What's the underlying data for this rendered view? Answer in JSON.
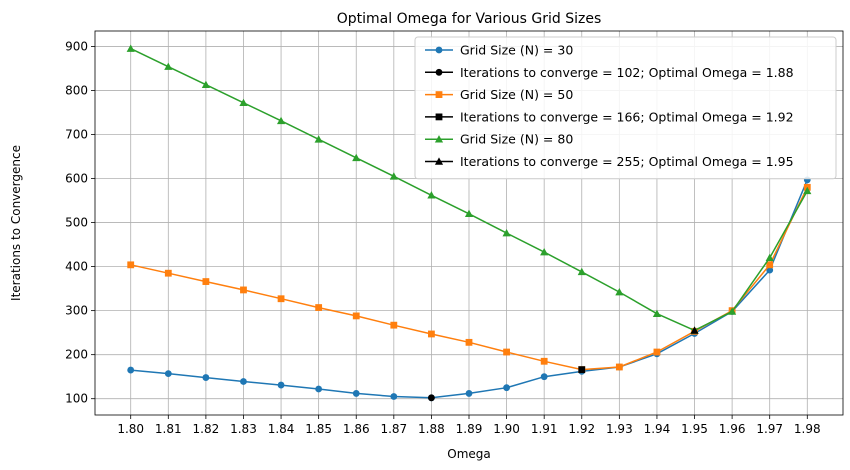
{
  "chart_data": {
    "type": "line",
    "title": "Optimal Omega for Various Grid Sizes",
    "xlabel": "Omega",
    "ylabel": "Iterations to Convergence",
    "xlim": [
      1.7905,
      1.9895
    ],
    "ylim": [
      63,
      935
    ],
    "grid": true,
    "legend_position": "top-right",
    "x_ticks": [
      "1.80",
      "1.81",
      "1.82",
      "1.83",
      "1.84",
      "1.85",
      "1.86",
      "1.87",
      "1.88",
      "1.89",
      "1.90",
      "1.91",
      "1.92",
      "1.93",
      "1.94",
      "1.95",
      "1.96",
      "1.97",
      "1.98"
    ],
    "y_ticks": [
      "100",
      "200",
      "300",
      "400",
      "500",
      "600",
      "700",
      "800",
      "900"
    ],
    "x": [
      1.8,
      1.81,
      1.82,
      1.83,
      1.84,
      1.85,
      1.86,
      1.87,
      1.88,
      1.89,
      1.9,
      1.91,
      1.92,
      1.93,
      1.94,
      1.95,
      1.96,
      1.97,
      1.98
    ],
    "series": [
      {
        "name": "Grid Size (N) = 30",
        "color": "#1f77b4",
        "marker": "circle",
        "values": [
          165,
          157,
          148,
          139,
          131,
          122,
          112,
          105,
          102,
          112,
          125,
          150,
          162,
          172,
          202,
          248,
          298,
          392,
          597
        ]
      },
      {
        "name": "Grid Size (N) = 50",
        "color": "#ff7f0e",
        "marker": "square",
        "values": [
          404,
          385,
          366,
          347,
          327,
          307,
          288,
          267,
          247,
          228,
          206,
          185,
          166,
          172,
          206,
          253,
          300,
          404,
          580
        ]
      },
      {
        "name": "Grid Size (N) = 80",
        "color": "#2ca02c",
        "marker": "triangle",
        "values": [
          895,
          854,
          813,
          772,
          731,
          689,
          647,
          605,
          562,
          520,
          476,
          433,
          388,
          342,
          293,
          255,
          298,
          420,
          572
        ]
      }
    ],
    "optima": [
      {
        "name": "Iterations to converge = 102; Optimal Omega = 1.88",
        "x": 1.88,
        "y": 102,
        "marker": "circle",
        "color": "#000000"
      },
      {
        "name": "Iterations to converge = 166; Optimal Omega = 1.92",
        "x": 1.92,
        "y": 166,
        "marker": "square",
        "color": "#000000"
      },
      {
        "name": "Iterations to converge = 255; Optimal Omega = 1.95",
        "x": 1.95,
        "y": 255,
        "marker": "triangle",
        "color": "#000000"
      }
    ],
    "legend_order": [
      {
        "kind": "series",
        "index": 0
      },
      {
        "kind": "optimum",
        "index": 0
      },
      {
        "kind": "series",
        "index": 1
      },
      {
        "kind": "optimum",
        "index": 1
      },
      {
        "kind": "series",
        "index": 2
      },
      {
        "kind": "optimum",
        "index": 2
      }
    ]
  }
}
